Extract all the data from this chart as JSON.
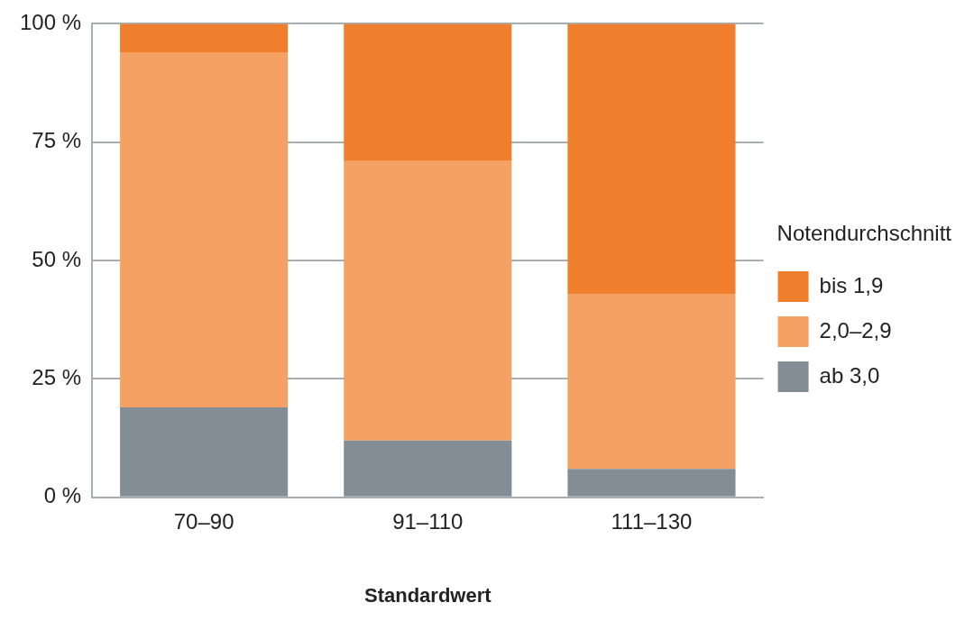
{
  "chart_data": {
    "type": "bar",
    "stacked": true,
    "xlabel": "Standardwert",
    "legend_title": "Notendurchschnitt",
    "legend": "right",
    "grid": "y",
    "categories": [
      "70–90",
      "91–110",
      "111–130"
    ],
    "ylim": [
      0,
      100
    ],
    "yticks": [
      {
        "value": 0,
        "label": "0 %"
      },
      {
        "value": 25,
        "label": "25 %"
      },
      {
        "value": 50,
        "label": "50 %"
      },
      {
        "value": 75,
        "label": "75 %"
      },
      {
        "value": 100,
        "label": "100 %"
      }
    ],
    "series": [
      {
        "name": "ab 3,0",
        "color": "#838d95",
        "values": [
          19,
          12,
          6
        ]
      },
      {
        "name": "2,0–2,9",
        "color": "#f4a163",
        "values": [
          75,
          59,
          37
        ]
      },
      {
        "name": "bis 1,9",
        "color": "#ef7f2c",
        "values": [
          6,
          29,
          57
        ]
      }
    ]
  }
}
